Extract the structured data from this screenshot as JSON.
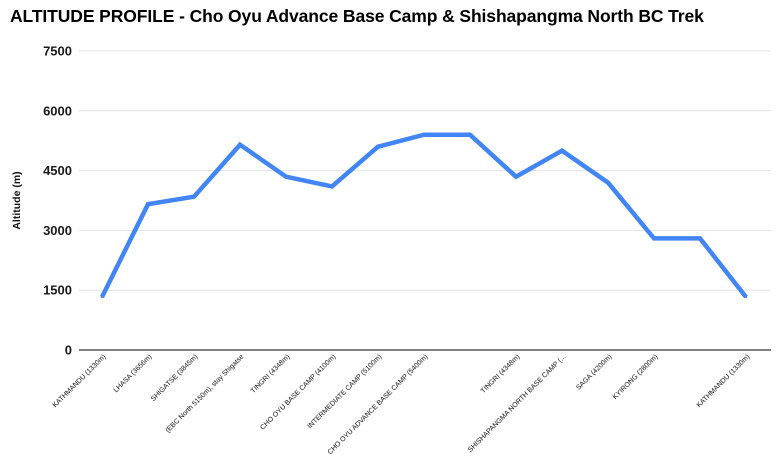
{
  "chart_data": {
    "type": "line",
    "title": "ALTITUDE PROFILE - Cho Oyu Advance Base Camp & Shishapangma North BC Trek",
    "xlabel": "",
    "ylabel": "Altitude (m)",
    "ylim": [
      0,
      7500
    ],
    "yticks": [
      0,
      1500,
      3000,
      4500,
      6000,
      7500
    ],
    "grid": true,
    "legend": "none",
    "line_color": "#4285f4",
    "categories": [
      "KATHMANDU (1330m)",
      "LHASA (3656m)",
      "SHIGATSE (3845m)",
      "(EBC North 5150m), stay Shigatse",
      "TINGRI (4348m)",
      "CHO OYU BASE CAMP (4100m)",
      "INTERMEDIATE CAMP (5100m)",
      "CHO OYU ADVANCE BASE CAMP (5400m)",
      "",
      "TINGRI (4348m)",
      "SHISHAPANGMA NORTH BASE CAMP (...",
      "SAGA (4200m)",
      "KYIRONG (2800m)",
      "",
      "KATHMANDU (1330m)"
    ],
    "values": [
      1330,
      3656,
      3845,
      5150,
      4348,
      4100,
      5100,
      5400,
      5400,
      4348,
      5000,
      4200,
      2800,
      2800,
      1330
    ]
  }
}
